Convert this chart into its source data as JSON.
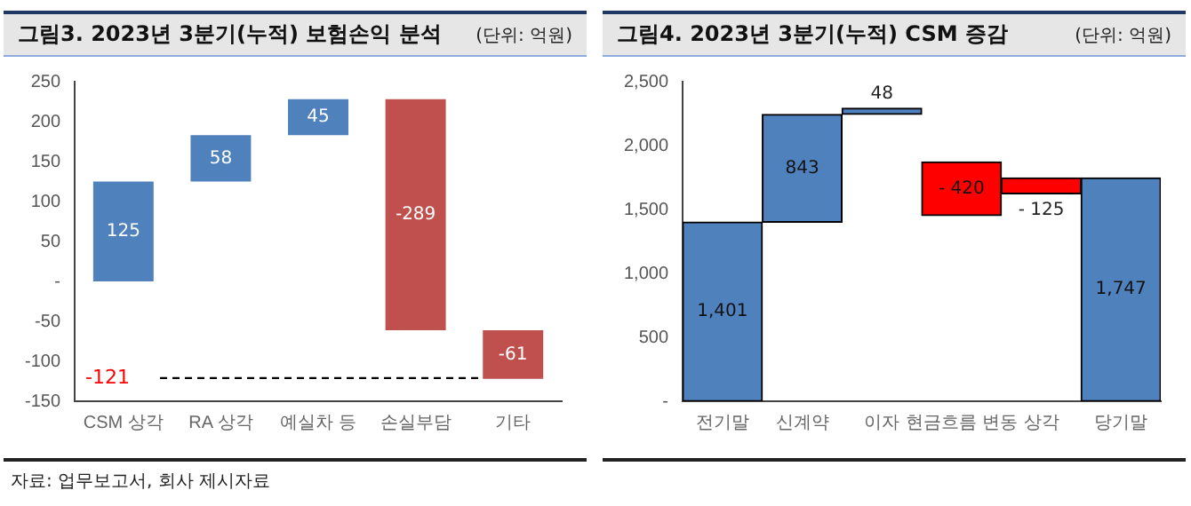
{
  "chart_data": [
    {
      "type": "bar",
      "title": "그림3. 2023년 3분기(누적) 보험손익 분석",
      "subtitle": "(단위: 억원)",
      "categories": [
        "CSM 상각",
        "RA 상각",
        "예실차 등",
        "손실부담",
        "기타"
      ],
      "values": [
        125,
        58,
        45,
        -289,
        -61
      ],
      "base": [
        0,
        125,
        183,
        228,
        -61
      ],
      "colors": [
        "#4f81bd",
        "#4f81bd",
        "#4f81bd",
        "#c0504d",
        "#c0504d"
      ],
      "data_labels": true,
      "ylim": [
        -150,
        250
      ],
      "yticks": [
        -150,
        -100,
        -50,
        {
          "value": 0,
          "label": "-"
        },
        50,
        100,
        150,
        200,
        250
      ],
      "ref_lines": [
        {
          "axis": "y",
          "value": -121,
          "label": "-121",
          "color": "#000000",
          "line_style": "dashed"
        }
      ],
      "annotations": [
        "자료: 업무보고서, 회사 제시자료"
      ],
      "grid": false,
      "legend": false
    },
    {
      "type": "bar",
      "title": "그림4. 2023년 3분기(누적) CSM 증감",
      "subtitle": "(단위: 억원)",
      "categories": [
        "전기말",
        "신계약",
        "이자",
        "현금흐름 변동",
        "상각",
        "당기말"
      ],
      "values": [
        1401,
        843,
        48,
        -420,
        -125,
        1747
      ],
      "base": [
        0,
        1401,
        2244,
        1872,
        1747,
        0
      ],
      "colors": [
        "#4f81bd",
        "#4f81bd",
        "#4f81bd",
        "#ff0000",
        "#ff0000",
        "#4f81bd"
      ],
      "value_labels": [
        "1,401",
        "843",
        "48",
        "- 420",
        "- 125",
        "1,747"
      ],
      "ylim": [
        0,
        2500
      ],
      "yticks": [
        {
          "value": 0,
          "label": "-"
        },
        {
          "value": 500,
          "label": "500"
        },
        {
          "value": 1000,
          "label": "1,000"
        },
        {
          "value": 1500,
          "label": "1,500"
        },
        {
          "value": 2000,
          "label": "2,000"
        },
        {
          "value": 2500,
          "label": "2,500"
        }
      ],
      "grid": false,
      "legend": false
    }
  ]
}
